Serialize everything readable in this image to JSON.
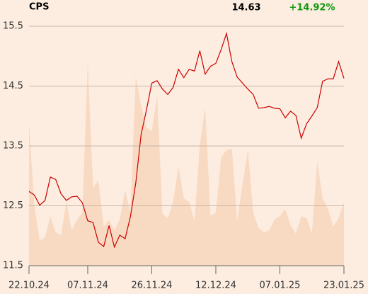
{
  "chart_data": {
    "type": "line",
    "title": "CPS",
    "last_price": "14.63",
    "change": "+14.92%",
    "change_color": "#119911",
    "categories": [
      "22.10.24",
      null,
      null,
      null,
      null,
      null,
      null,
      null,
      null,
      null,
      null,
      "07.11.24",
      null,
      null,
      null,
      null,
      null,
      null,
      null,
      null,
      null,
      null,
      null,
      "26.11.24",
      null,
      null,
      null,
      null,
      null,
      null,
      null,
      null,
      null,
      null,
      null,
      "12.12.24",
      null,
      null,
      null,
      null,
      null,
      null,
      null,
      null,
      null,
      null,
      null,
      "07.01.25",
      null,
      null,
      null,
      null,
      null,
      null,
      null,
      null,
      null,
      null,
      null,
      "23.01.25"
    ],
    "series": [
      {
        "color": "#cc0000",
        "values": [
          12.74,
          12.68,
          12.51,
          12.59,
          12.98,
          12.94,
          12.7,
          12.59,
          12.65,
          12.66,
          12.55,
          12.25,
          12.22,
          11.89,
          11.82,
          12.17,
          11.81,
          12.01,
          11.95,
          12.32,
          12.88,
          13.69,
          14.1,
          14.55,
          14.59,
          14.45,
          14.36,
          14.48,
          14.78,
          14.64,
          14.78,
          14.75,
          15.09,
          14.7,
          14.83,
          14.88,
          15.11,
          15.38,
          14.91,
          14.65,
          14.55,
          14.45,
          14.36,
          14.13,
          14.14,
          14.16,
          14.13,
          14.12,
          13.97,
          14.08,
          14.01,
          13.63,
          13.87,
          14.0,
          14.14,
          14.58,
          14.62,
          14.62,
          14.91,
          14.63
        ]
      },
      {
        "color": "#f8d9c2",
        "axis": "y2",
        "values": [
          200,
          85,
          35,
          40,
          70,
          47,
          43,
          90,
          50,
          65,
          75,
          287,
          110,
          120,
          55,
          65,
          50,
          65,
          107,
          75,
          267,
          225,
          195,
          190,
          240,
          73,
          67,
          90,
          140,
          95,
          90,
          63,
          170,
          223,
          70,
          75,
          153,
          163,
          165,
          63,
          115,
          163,
          75,
          53,
          47,
          50,
          65,
          70,
          80,
          57,
          45,
          70,
          67,
          45,
          147,
          95,
          80,
          55,
          67,
          90
        ]
      }
    ],
    "ylim": [
      11.5,
      15.5
    ],
    "yticks": [
      15.5,
      14.5,
      13.5,
      12.5,
      11.5
    ],
    "y2lim": [
      0,
      338
    ],
    "grid": true
  }
}
